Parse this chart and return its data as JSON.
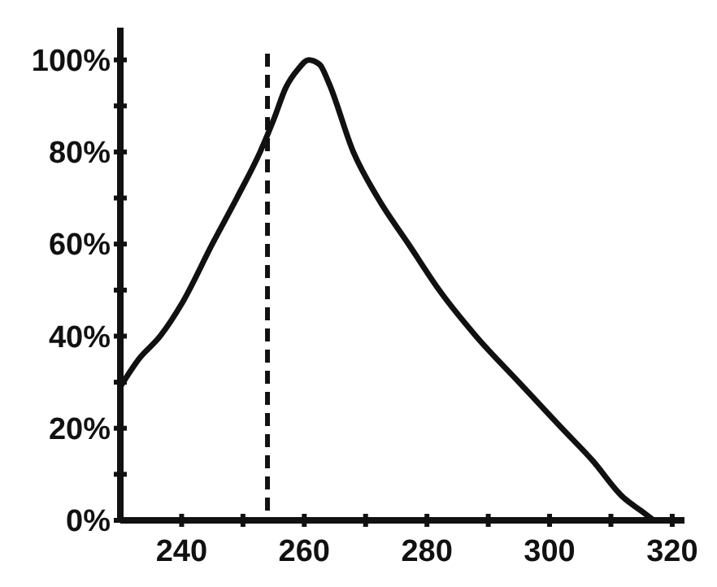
{
  "chart_data": {
    "type": "line",
    "x": [
      230,
      233,
      236.5,
      240,
      245,
      249,
      252.8,
      255,
      257,
      259,
      260.7,
      262.5,
      264,
      268,
      272,
      277,
      282,
      288,
      295,
      302,
      307,
      312,
      315,
      317
    ],
    "values": [
      29,
      35,
      40,
      47,
      60,
      70,
      80,
      87,
      94,
      98,
      100,
      99,
      95,
      80,
      70,
      60,
      50,
      40,
      30,
      20,
      13,
      5,
      2,
      0
    ],
    "color": "#111111",
    "xlim": [
      230,
      322
    ],
    "ylim": [
      0,
      107
    ],
    "xticks": [
      240,
      {
        "value": 250,
        "label": null
      },
      260,
      {
        "value": 270,
        "label": null
      },
      280,
      {
        "value": 290,
        "label": null
      },
      300,
      {
        "value": 310,
        "label": null
      },
      320
    ],
    "yticks": [
      {
        "value": 0,
        "label": "0%"
      },
      {
        "value": 10,
        "label": null
      },
      {
        "value": 20,
        "label": "20%"
      },
      {
        "value": 30,
        "label": null
      },
      {
        "value": 40,
        "label": "40%"
      },
      {
        "value": 50,
        "label": null
      },
      {
        "value": 60,
        "label": "60%"
      },
      {
        "value": 70,
        "label": null
      },
      {
        "value": 80,
        "label": "80%"
      },
      {
        "value": 90,
        "label": null
      },
      {
        "value": 100,
        "label": "100%"
      }
    ],
    "ref_lines": [
      {
        "axis": "x",
        "value": 254,
        "line_style": "dashed"
      }
    ],
    "marker": "none",
    "line_style": "solid",
    "grid": false
  }
}
